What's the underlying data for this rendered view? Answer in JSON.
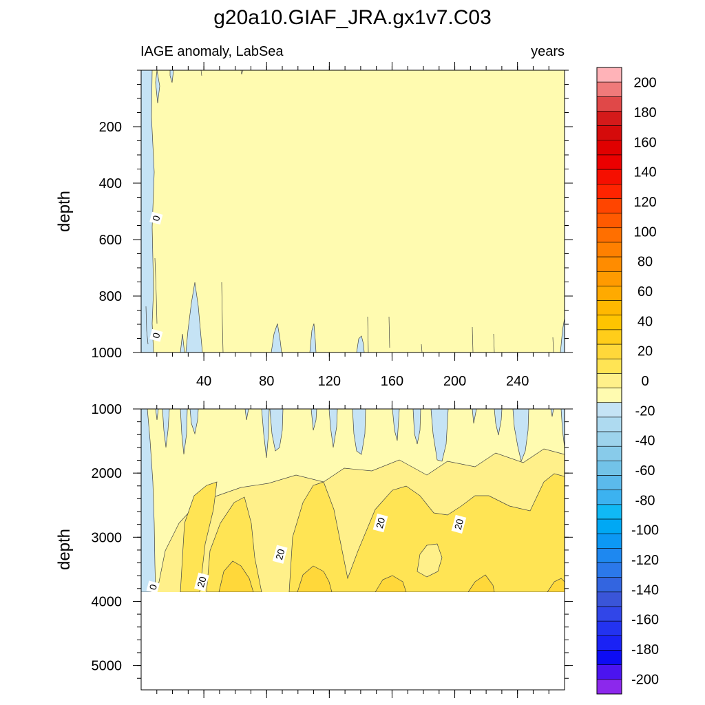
{
  "figure": {
    "title": "g20a10.GIAF_JRA.gx1v7.C03",
    "left_string": "IAGE anomaly, LabSea",
    "right_string": "years"
  },
  "chart_data": [
    {
      "type": "contour",
      "panel": "upper",
      "title": "IAGE anomaly, LabSea",
      "units": "years",
      "xlabel": "",
      "ylabel": "depth",
      "xlim": [
        0,
        270
      ],
      "ylim": [
        1000,
        0
      ],
      "x_ticks": [
        40,
        80,
        120,
        160,
        200,
        240
      ],
      "y_ticks": [
        200,
        400,
        600,
        800,
        1000
      ],
      "contour_labels": [
        {
          "text": "0",
          "x": 10,
          "y": 525
        },
        {
          "text": "0",
          "x": 10,
          "y": 940
        }
      ],
      "dominant_value": "0 to 10"
    },
    {
      "type": "contour",
      "panel": "lower",
      "xlabel": "",
      "ylabel": "depth",
      "xlim": [
        0,
        270
      ],
      "ylim": [
        5380,
        1000
      ],
      "data_bottom_depth": 3870,
      "x_ticks": [
        40,
        80,
        120,
        160,
        200,
        240
      ],
      "y_ticks": [
        1000,
        2000,
        3000,
        4000,
        5000
      ],
      "contour_labels": [
        {
          "text": "20",
          "x": 153,
          "y": 2780
        },
        {
          "text": "20",
          "x": 203,
          "y": 2800
        },
        {
          "text": "20",
          "x": 89,
          "y": 3270
        },
        {
          "text": "20",
          "x": 39,
          "y": 3700
        },
        {
          "text": "0",
          "x": 8,
          "y": 3780
        }
      ]
    }
  ],
  "colorbar": {
    "min": -210,
    "max": 210,
    "step": 10,
    "labels": [
      "200",
      "180",
      "160",
      "140",
      "120",
      "100",
      "80",
      "60",
      "40",
      "20",
      "0",
      "-20",
      "-40",
      "-60",
      "-80",
      "-100",
      "-120",
      "-140",
      "-160",
      "-180",
      "-200"
    ],
    "colors": [
      "#FFB3B8",
      "#F07A7A",
      "#E04848",
      "#D41A1A",
      "#D50B0B",
      "#E00000",
      "#EB0000",
      "#F50F00",
      "#FF2400",
      "#FF4500",
      "#FF5A00",
      "#FF6F00",
      "#FF8000",
      "#FF8C00",
      "#FF9A00",
      "#FFAA00",
      "#FFB800",
      "#FFC400",
      "#FFCD1A",
      "#FFD83A",
      "#FFE454",
      "#FFF08A",
      "#FFFBB0",
      "#C5E3F5",
      "#AEDAF0",
      "#9DD3EC",
      "#88CBEA",
      "#72C3E8",
      "#5BBAEC",
      "#3CB2F0",
      "#10B9F5",
      "#00A8F4",
      "#0C98F4",
      "#1E88F0",
      "#2B78EA",
      "#3365E0",
      "#3A55D8",
      "#3146E8",
      "#2333F0",
      "#1A22F5",
      "#0D0CF4",
      "#4B14F0",
      "#8C28EC"
    ]
  }
}
